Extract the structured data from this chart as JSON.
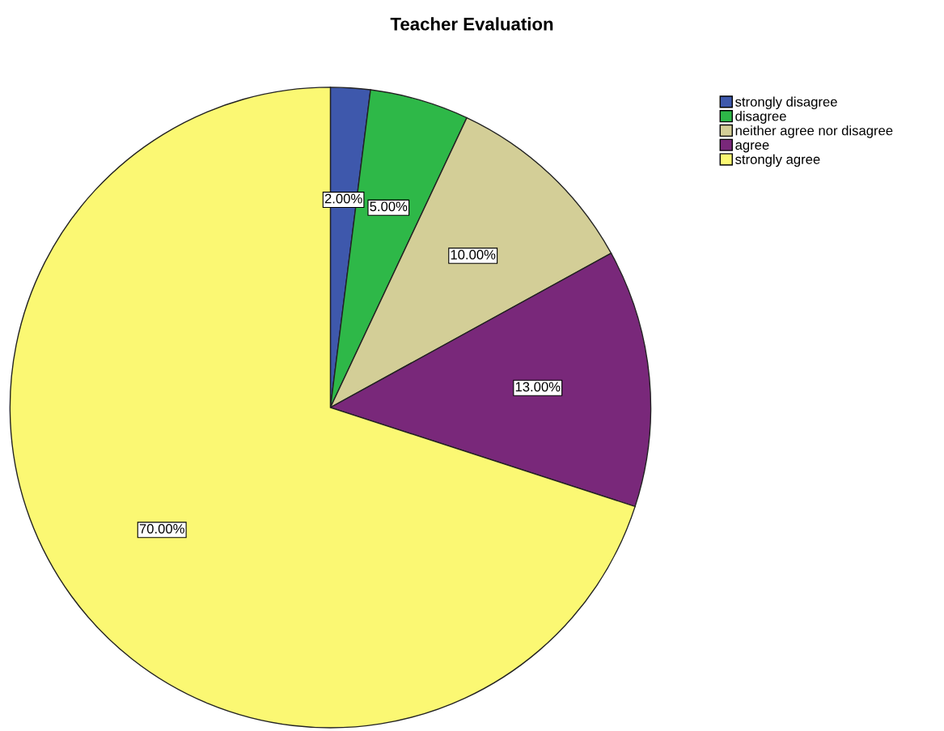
{
  "chart_data": {
    "type": "pie",
    "title": "Teacher Evaluation",
    "categories": [
      "strongly disagree",
      "disagree",
      "neither agree nor disagree",
      "agree",
      "strongly agree"
    ],
    "values": [
      2,
      5,
      10,
      13,
      70
    ],
    "colors": [
      "#3e58ac",
      "#2eb848",
      "#d3ce97",
      "#79287a",
      "#fbf873"
    ],
    "value_labels": [
      "2.00%",
      "5.00%",
      "10.00%",
      "13.00%",
      "70.00%"
    ],
    "legend": "top right"
  }
}
